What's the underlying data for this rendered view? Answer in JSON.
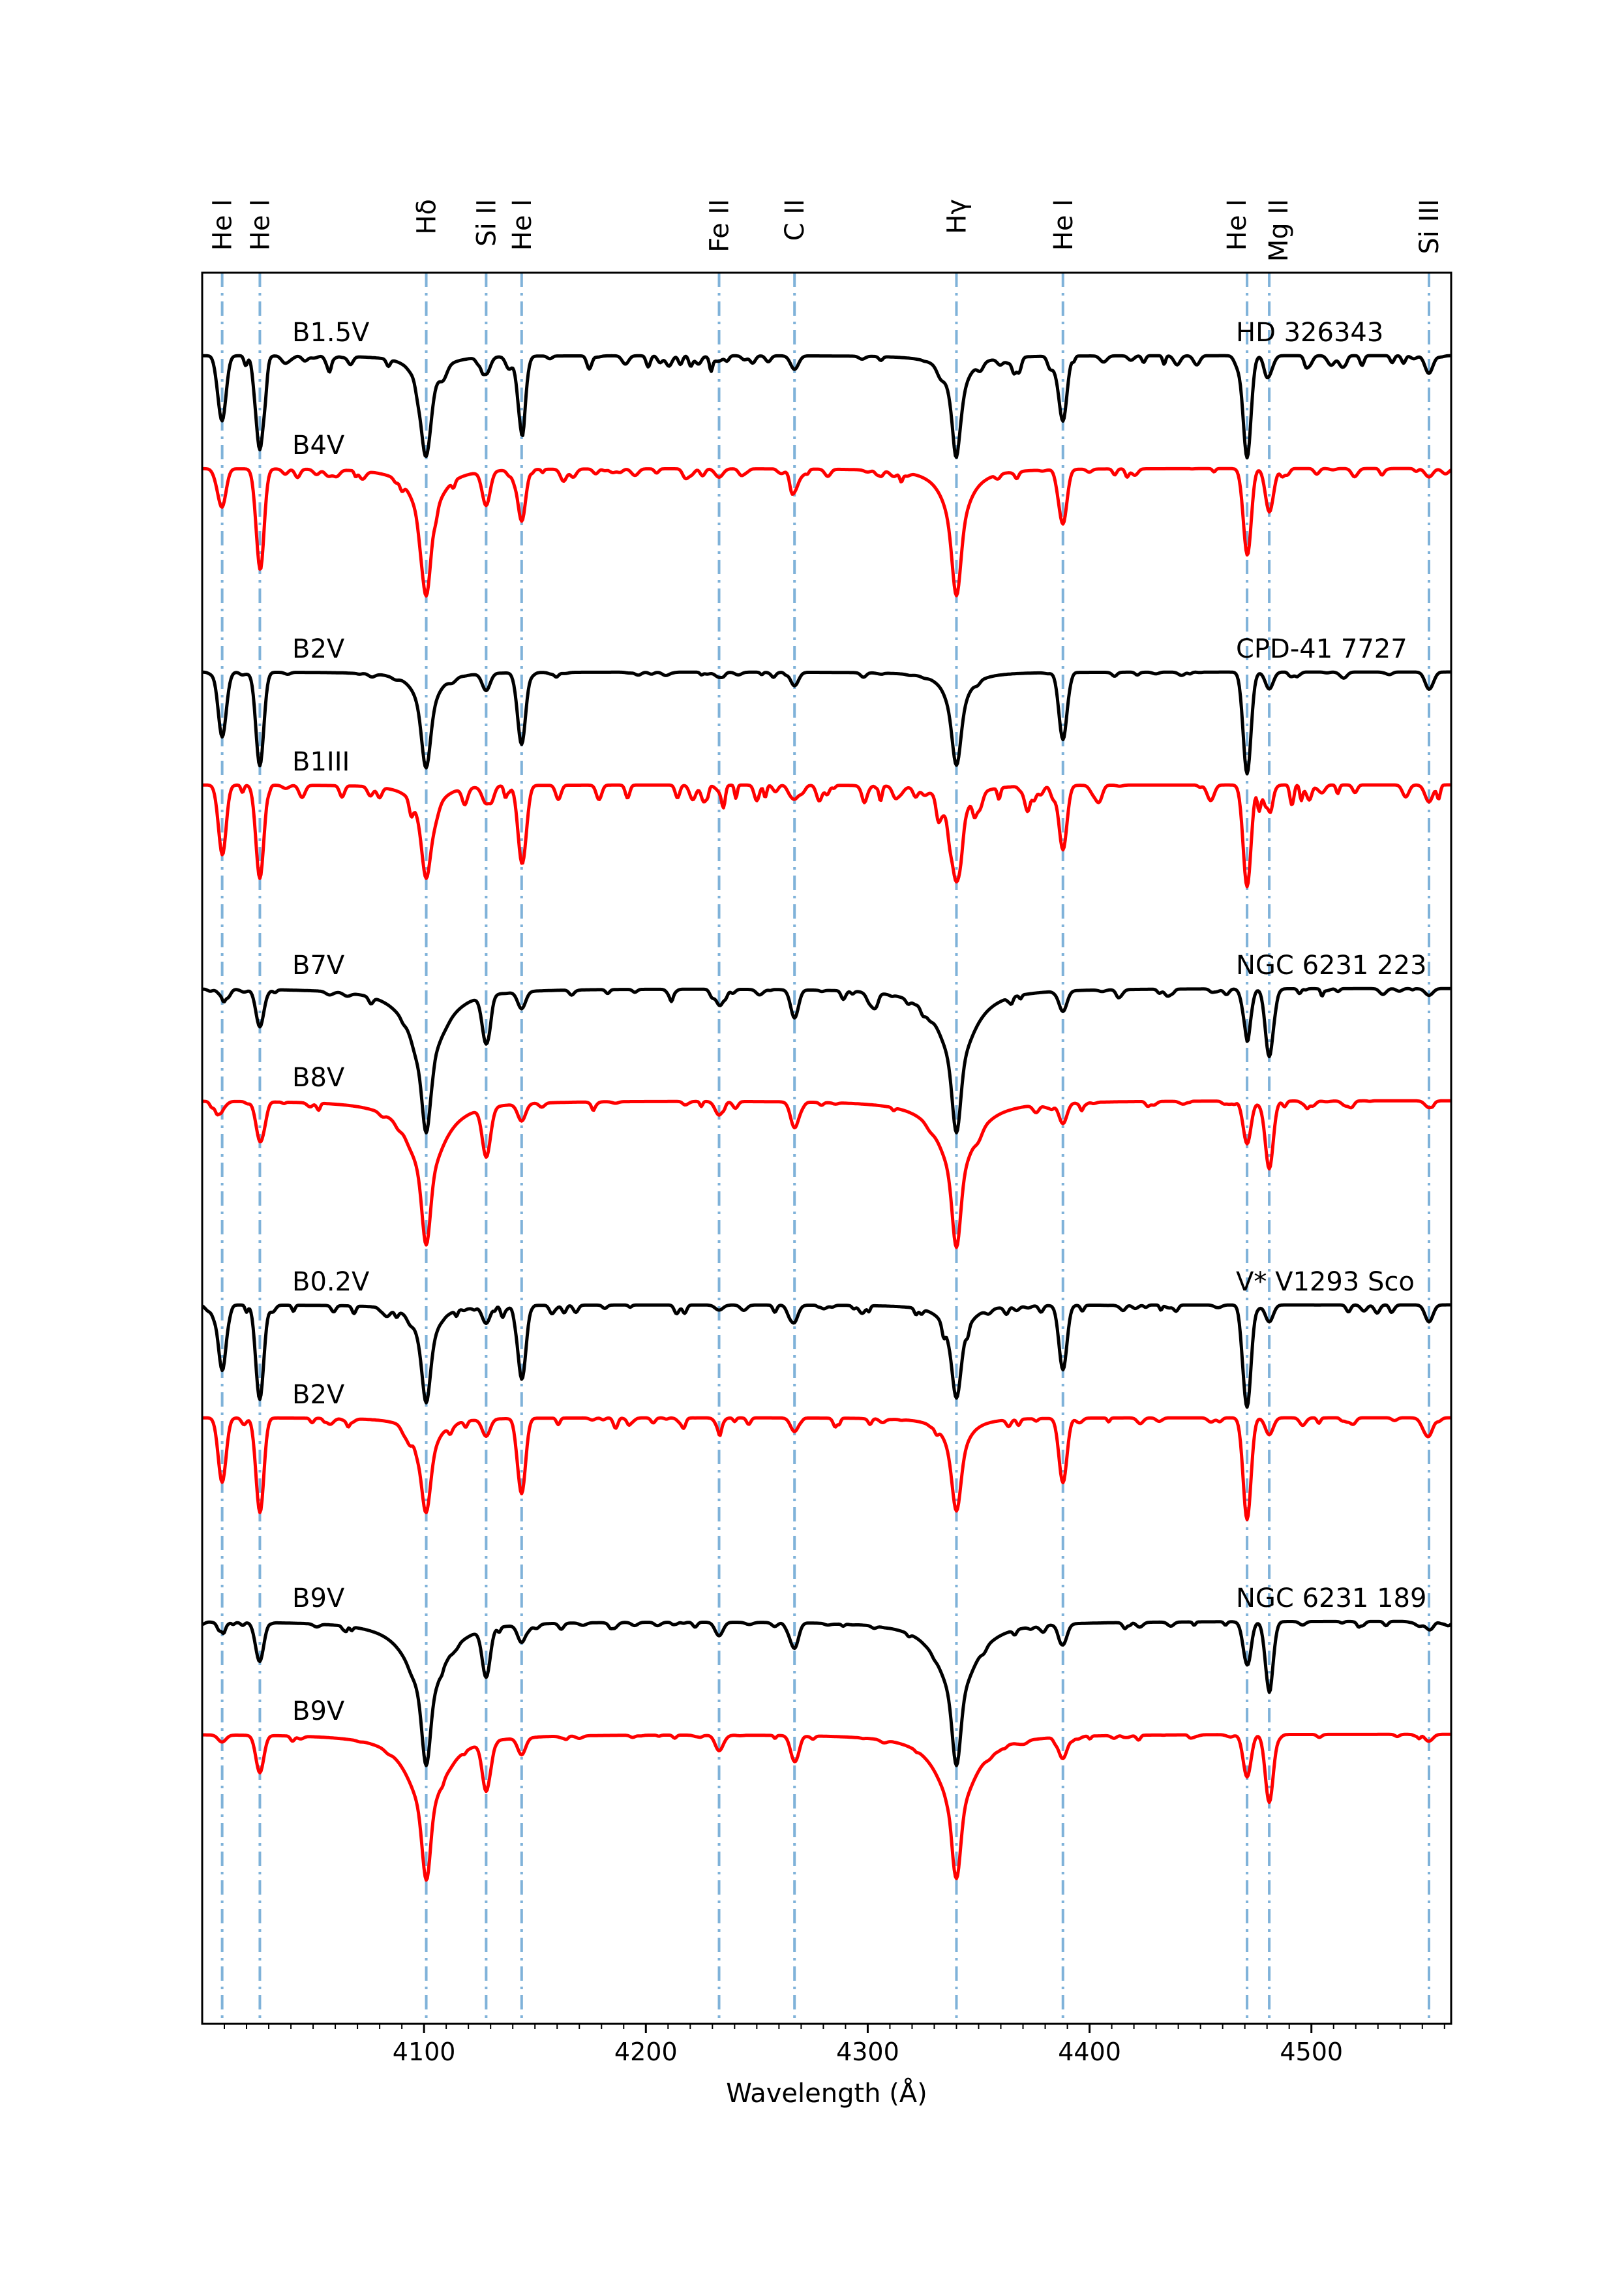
{
  "chart_data": {
    "type": "line",
    "title": "",
    "xlabel": "Wavelength (Å)",
    "ylabel": "",
    "xlim": [
      4000,
      4563
    ],
    "x_ticks": [
      4100,
      4200,
      4300,
      4400,
      4500
    ],
    "grid": false,
    "legend": "none",
    "colors": {
      "observed": "#000000",
      "template": "#ff0000",
      "line_marker": "#7fb2d9"
    },
    "lines": [
      {
        "label": "He I",
        "x": 4009
      },
      {
        "label": "He I",
        "x": 4026
      },
      {
        "label": "Hδ",
        "x": 4101
      },
      {
        "label": "Si II",
        "x": 4128
      },
      {
        "label": "He I",
        "x": 4144
      },
      {
        "label": "Fe II",
        "x": 4233
      },
      {
        "label": "C II",
        "x": 4267
      },
      {
        "label": "Hγ",
        "x": 4340
      },
      {
        "label": "He I",
        "x": 4388
      },
      {
        "label": "He I",
        "x": 4471
      },
      {
        "label": "Mg II",
        "x": 4481
      },
      {
        "label": "Si III",
        "x": 4553
      }
    ],
    "groups": [
      {
        "star": "HD 326343",
        "observed_type": "B1.5V",
        "template_type": "B4V"
      },
      {
        "star": "CPD-41 7727",
        "observed_type": "B2V",
        "template_type": "B1III"
      },
      {
        "star": "NGC 6231 223",
        "observed_type": "B7V",
        "template_type": "B8V"
      },
      {
        "star": "V* V1293 Sco",
        "observed_type": "B0.2V",
        "template_type": "B2V"
      },
      {
        "star": "NGC 6231 189",
        "observed_type": "B9V",
        "template_type": "B9V"
      }
    ]
  }
}
